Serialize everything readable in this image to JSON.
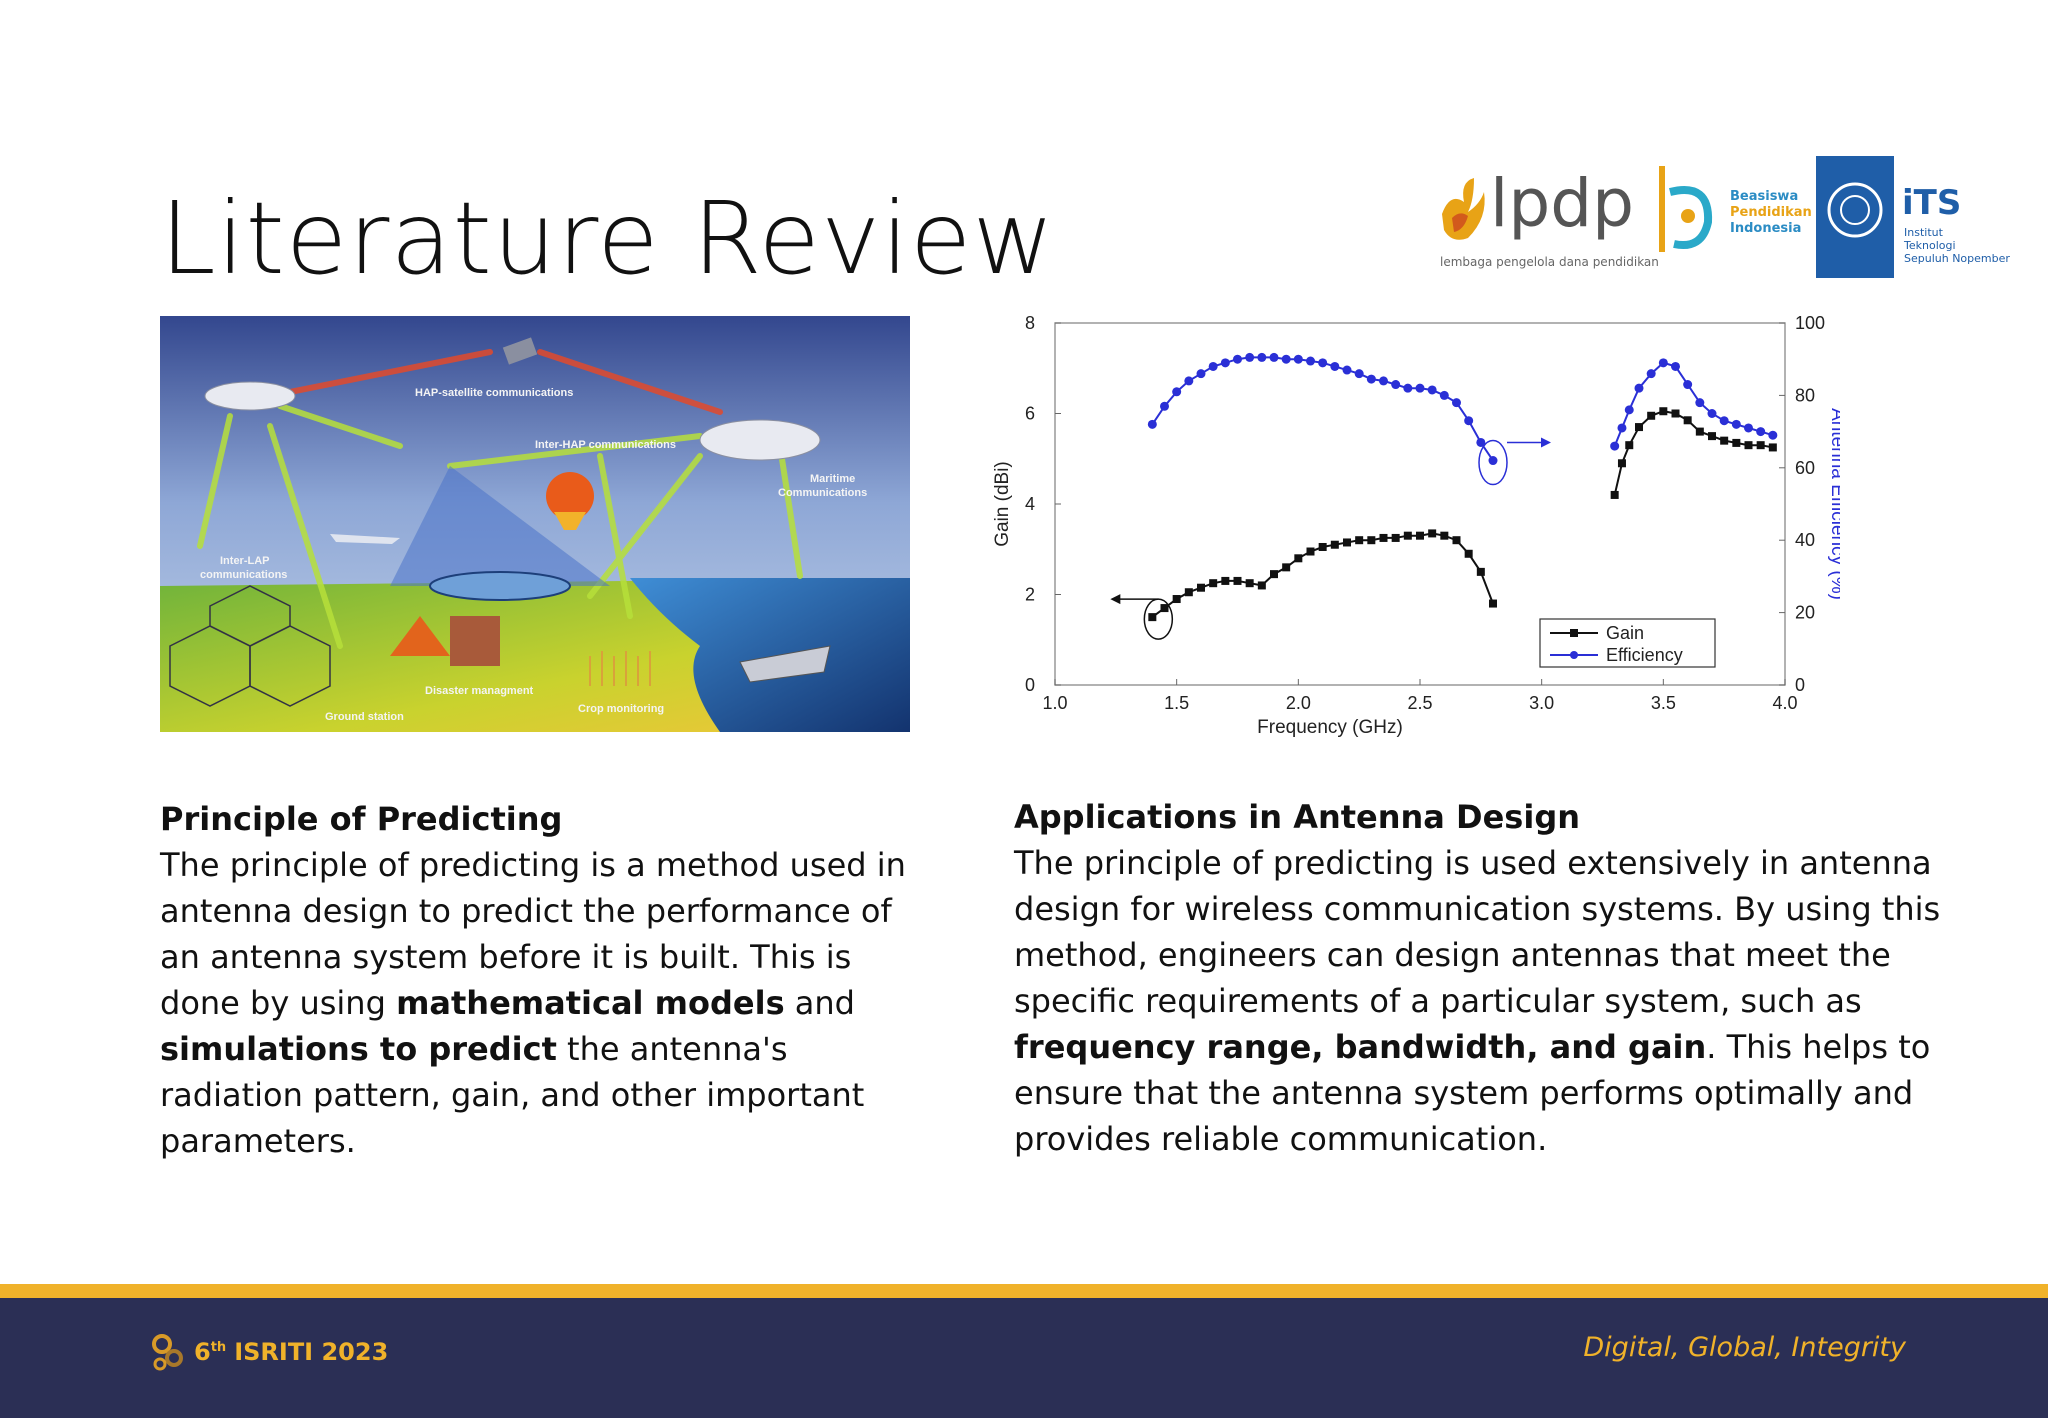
{
  "slide": {
    "title": "Literature Review"
  },
  "logos": {
    "lpdp_word": "lpdp",
    "lpdp_sub": "lembaga pengelola dana pendidikan",
    "bpi_line1": "Beasiswa",
    "bpi_line2": "Pendidikan",
    "bpi_line3": "Indonesia",
    "its_word": "iTS",
    "its_line1": "Institut",
    "its_line2": "Teknologi",
    "its_line3": "Sepuluh Nopember"
  },
  "illustration": {
    "labels": {
      "hap_sat": "HAP-satellite communications",
      "inter_hap": "Inter-HAP communications",
      "maritime1": "Maritime",
      "maritime2": "Communications",
      "inter_lap1": "Inter-LAP",
      "inter_lap2": "communications",
      "disaster": "Disaster managment",
      "crop": "Crop monitoring",
      "ground": "Ground station"
    }
  },
  "chart_data": {
    "type": "line",
    "xlabel": "Frequency (GHz)",
    "ylabel": "Gain (dBi)",
    "y2label": "Antenna Efficiency (%)",
    "xlim": [
      1.0,
      4.0
    ],
    "ylim": [
      0,
      8
    ],
    "y2lim": [
      0,
      100
    ],
    "xticks": [
      "1.0",
      "1.5",
      "2.0",
      "2.5",
      "3.0",
      "3.5",
      "4.0"
    ],
    "yticks": [
      "0",
      "2",
      "4",
      "6",
      "8"
    ],
    "y2ticks": [
      "0",
      "20",
      "40",
      "60",
      "80",
      "100"
    ],
    "legend_position": "bottom-right",
    "series": [
      {
        "name": "Gain",
        "axis": "left",
        "color": "#111111",
        "segments": [
          [
            [
              1.4,
              1.5
            ],
            [
              1.45,
              1.7
            ],
            [
              1.5,
              1.9
            ],
            [
              1.55,
              2.05
            ],
            [
              1.6,
              2.15
            ],
            [
              1.65,
              2.25
            ],
            [
              1.7,
              2.3
            ],
            [
              1.75,
              2.3
            ],
            [
              1.8,
              2.25
            ],
            [
              1.85,
              2.2
            ],
            [
              1.9,
              2.45
            ],
            [
              1.95,
              2.6
            ],
            [
              2.0,
              2.8
            ],
            [
              2.05,
              2.95
            ],
            [
              2.1,
              3.05
            ],
            [
              2.15,
              3.1
            ],
            [
              2.2,
              3.15
            ],
            [
              2.25,
              3.2
            ],
            [
              2.3,
              3.2
            ],
            [
              2.35,
              3.25
            ],
            [
              2.4,
              3.25
            ],
            [
              2.45,
              3.3
            ],
            [
              2.5,
              3.3
            ],
            [
              2.55,
              3.35
            ],
            [
              2.6,
              3.3
            ],
            [
              2.65,
              3.2
            ],
            [
              2.7,
              2.9
            ],
            [
              2.75,
              2.5
            ],
            [
              2.8,
              1.8
            ]
          ],
          [
            [
              3.3,
              4.2
            ],
            [
              3.33,
              4.9
            ],
            [
              3.36,
              5.3
            ],
            [
              3.4,
              5.7
            ],
            [
              3.45,
              5.95
            ],
            [
              3.5,
              6.05
            ],
            [
              3.55,
              6.0
            ],
            [
              3.6,
              5.85
            ],
            [
              3.65,
              5.6
            ],
            [
              3.7,
              5.5
            ],
            [
              3.75,
              5.4
            ],
            [
              3.8,
              5.35
            ],
            [
              3.85,
              5.3
            ],
            [
              3.9,
              5.3
            ],
            [
              3.95,
              5.25
            ]
          ]
        ]
      },
      {
        "name": "Efficiency",
        "axis": "right",
        "color": "#2a2fd6",
        "segments": [
          [
            [
              1.4,
              72
            ],
            [
              1.45,
              77
            ],
            [
              1.5,
              81
            ],
            [
              1.55,
              84
            ],
            [
              1.6,
              86
            ],
            [
              1.65,
              88
            ],
            [
              1.7,
              89
            ],
            [
              1.75,
              90
            ],
            [
              1.8,
              90.5
            ],
            [
              1.85,
              90.5
            ],
            [
              1.9,
              90.5
            ],
            [
              1.95,
              90
            ],
            [
              2.0,
              90
            ],
            [
              2.05,
              89.5
            ],
            [
              2.1,
              89
            ],
            [
              2.15,
              88
            ],
            [
              2.2,
              87
            ],
            [
              2.25,
              86
            ],
            [
              2.3,
              84.5
            ],
            [
              2.35,
              84
            ],
            [
              2.4,
              83
            ],
            [
              2.45,
              82
            ],
            [
              2.5,
              82
            ],
            [
              2.55,
              81.5
            ],
            [
              2.6,
              80
            ],
            [
              2.65,
              78
            ],
            [
              2.7,
              73
            ],
            [
              2.75,
              67
            ],
            [
              2.8,
              62
            ]
          ],
          [
            [
              3.3,
              66
            ],
            [
              3.33,
              71
            ],
            [
              3.36,
              76
            ],
            [
              3.4,
              82
            ],
            [
              3.45,
              86
            ],
            [
              3.5,
              89
            ],
            [
              3.55,
              88
            ],
            [
              3.6,
              83
            ],
            [
              3.65,
              78
            ],
            [
              3.7,
              75
            ],
            [
              3.75,
              73
            ],
            [
              3.8,
              72
            ],
            [
              3.85,
              71
            ],
            [
              3.9,
              70
            ],
            [
              3.95,
              69
            ]
          ]
        ]
      }
    ]
  },
  "left_text": {
    "heading": "Principle of Predicting",
    "t1": "The principle of predicting is a method used in antenna design to predict the performance of an antenna system before it is built. This is done by using ",
    "b1": "mathematical models",
    "t2": " and ",
    "b2": "simulations to predict",
    "t3": " the antenna's radiation pattern, gain, and other important parameters."
  },
  "right_text": {
    "heading": "Applications in Antenna Design",
    "t1": "The principle of predicting is used extensively in antenna design for wireless communication systems. By using this method, engineers can design antennas that meet the specific requirements of a particular system, such as ",
    "b1": "frequency range, bandwidth, and gain",
    "t2": ". This helps to ensure that the antenna system performs optimally and provides reliable communication."
  },
  "footer": {
    "event_sup": "th",
    "event_num": "6",
    "event_name": "ISRITI 2023",
    "tagline": "Digital, Global, Integrity",
    "colors": {
      "bar": "#f0b22a",
      "bg": "#2b2f55"
    }
  }
}
